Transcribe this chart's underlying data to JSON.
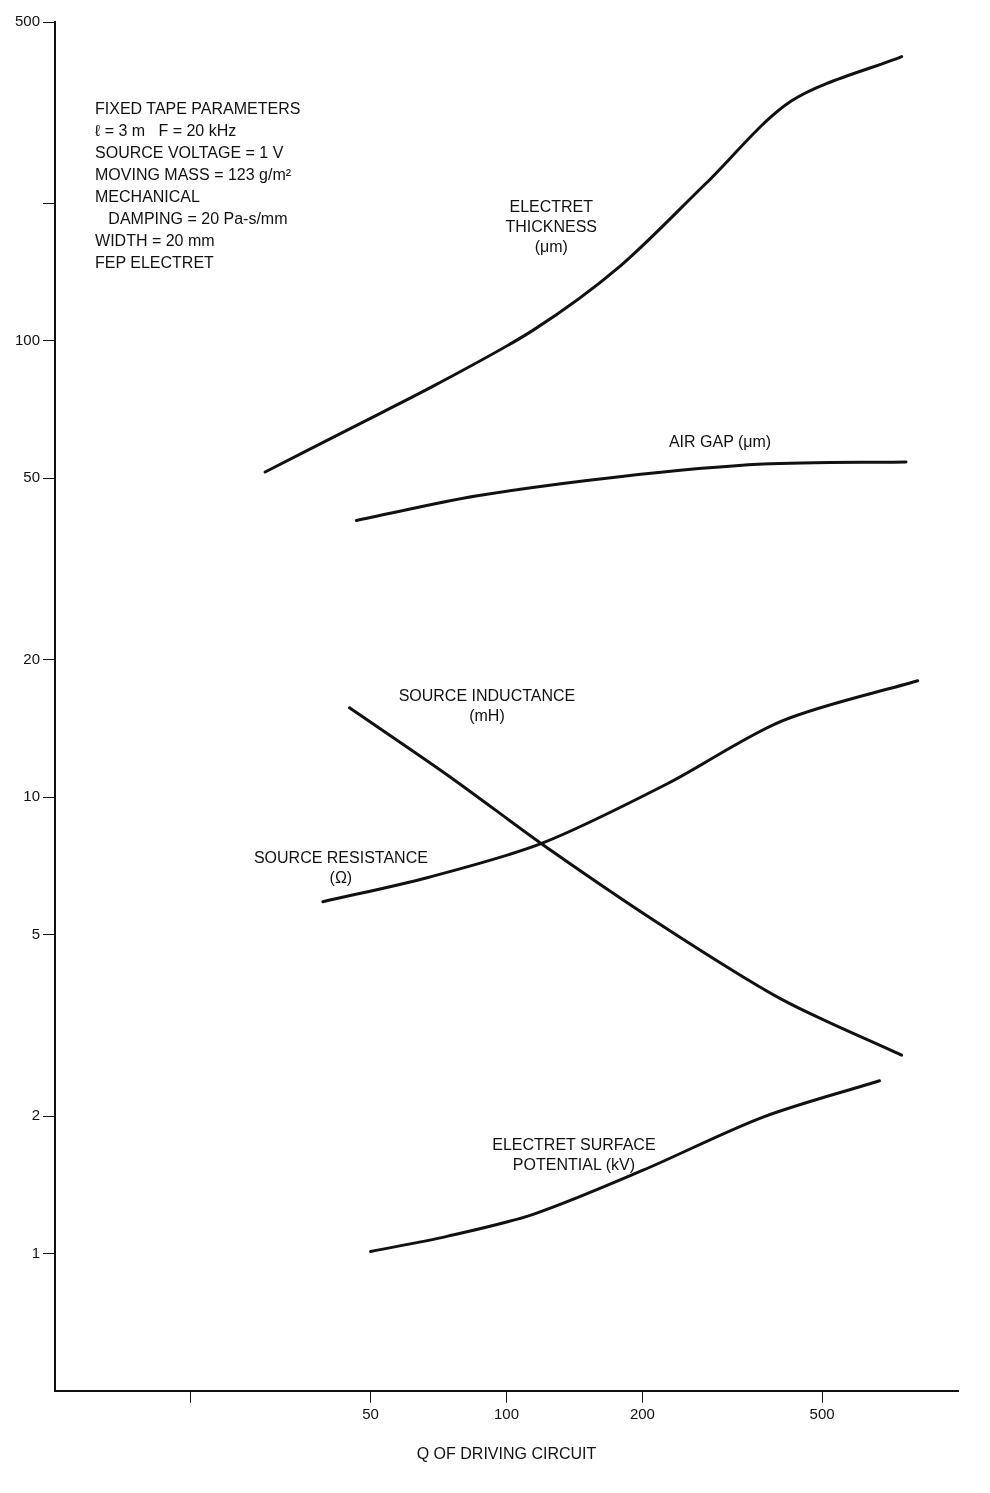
{
  "chart_data": {
    "type": "line",
    "xlabel": "Q OF DRIVING CIRCUIT",
    "log": "xy",
    "xlim": [
      10,
      1000
    ],
    "xticks": [
      {
        "value": 20,
        "label": null
      },
      50,
      100,
      200,
      500
    ],
    "ylim": [
      0.5,
      500
    ],
    "yticks": [
      1,
      2,
      5,
      10,
      20,
      50,
      100,
      {
        "value": 200,
        "label": null
      },
      500
    ],
    "grid": false,
    "legend": false,
    "marker": "none",
    "line_style": "solid",
    "series": [
      {
        "name": "ELECTRET\nTHICKNESS\n(μm)",
        "color": "#111111",
        "x": [
          29.2,
          45.4,
          70.3,
          114.6,
          178,
          276,
          428,
          750
        ],
        "values": [
          51.6,
          64.5,
          80.5,
          105.6,
          145.5,
          221,
          336,
          420
        ]
      },
      {
        "name": "AIR GAP (μm)",
        "color": "#111111",
        "x": [
          46.5,
          85.5,
          178,
          370,
          767
        ],
        "values": [
          40.4,
          45.7,
          50.4,
          53.7,
          54.3
        ]
      },
      {
        "name": "SOURCE INDUCTANCE\n(mH)",
        "color": "#111111",
        "x": [
          44.9,
          73.8,
          126,
          227,
          408,
          750
        ],
        "values": [
          15.7,
          11.2,
          7.62,
          5.14,
          3.6,
          2.72
        ]
      },
      {
        "name": "SOURCE RESISTANCE\n(Ω)",
        "color": "#111111",
        "x": [
          39.2,
          67,
          120,
          227,
          408,
          814
        ],
        "values": [
          5.9,
          6.67,
          7.93,
          10.7,
          14.7,
          18
        ]
      },
      {
        "name": "ELECTRET SURFACE\nPOTENTIAL (kV)",
        "color": "#111111",
        "x": [
          50,
          73.8,
          115,
          200,
          370,
          670
        ],
        "values": [
          1.01,
          1.09,
          1.22,
          1.52,
          1.99,
          2.39
        ]
      }
    ],
    "annotations": [
      "FIXED TAPE PARAMETERS\nℓ = 3 m   F = 20 kHz\nSOURCE VOLTAGE = 1 V\nMOVING MASS = 123 g/m²\nMECHANICAL\n   DAMPING = 20 Pa-s/mm\nWIDTH = 20 mm\nFEP ELECTRET"
    ]
  }
}
